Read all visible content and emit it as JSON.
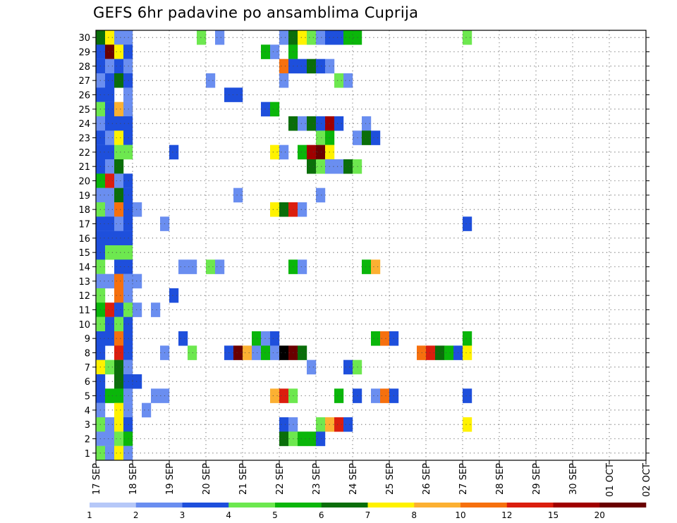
{
  "chart_data": {
    "type": "heatmap",
    "title": "GEFS 6hr padavine po ansamblima Cuprija",
    "x_step_hours": 6,
    "x_tick_labels": [
      "17 SEP",
      "18 SEP",
      "19 SEP",
      "20 SEP",
      "21 SEP",
      "22 SEP",
      "23 SEP",
      "24 SEP",
      "25 SEP",
      "26 SEP",
      "27 SEP",
      "28 SEP",
      "29 SEP",
      "30 SEP",
      "01 OCT",
      "02 OCT"
    ],
    "y_tick_labels": [
      "1",
      "2",
      "3",
      "4",
      "5",
      "6",
      "7",
      "8",
      "9",
      "10",
      "11",
      "12",
      "13",
      "14",
      "15",
      "16",
      "17",
      "18",
      "19",
      "20",
      "21",
      "22",
      "23",
      "24",
      "25",
      "26",
      "27",
      "28",
      "29",
      "30"
    ],
    "ylim": [
      1,
      30
    ],
    "grid": "dotted",
    "colorbar": {
      "position": "bottom",
      "labels": [
        "1",
        "2",
        "3",
        "4",
        "5",
        "6",
        "7",
        "8",
        "10",
        "12",
        "15",
        "20"
      ],
      "colors": [
        "#b6c8f8",
        "#6a8ef0",
        "#1e4fdc",
        "#6de84f",
        "#0ab60a",
        "#0a6e0a",
        "#fff200",
        "#fcb032",
        "#f6700e",
        "#db1e0e",
        "#a00000",
        "#6a0000"
      ]
    },
    "cells": [
      [
        0,
        30,
        5
      ],
      [
        1,
        30,
        6
      ],
      [
        2,
        30,
        1
      ],
      [
        3,
        30,
        1
      ],
      [
        11,
        30,
        3
      ],
      [
        13,
        30,
        1
      ],
      [
        20,
        30,
        1
      ],
      [
        21,
        30,
        5
      ],
      [
        22,
        30,
        6
      ],
      [
        23,
        30,
        3
      ],
      [
        24,
        30,
        1
      ],
      [
        25,
        30,
        2
      ],
      [
        26,
        30,
        2
      ],
      [
        27,
        30,
        4
      ],
      [
        28,
        30,
        4
      ],
      [
        40,
        30,
        3
      ],
      [
        0,
        29,
        2
      ],
      [
        1,
        29,
        11
      ],
      [
        2,
        29,
        6
      ],
      [
        3,
        29,
        2
      ],
      [
        18,
        29,
        4
      ],
      [
        19,
        29,
        1
      ],
      [
        21,
        29,
        4
      ],
      [
        0,
        28,
        2
      ],
      [
        1,
        28,
        1
      ],
      [
        2,
        28,
        2
      ],
      [
        3,
        28,
        1
      ],
      [
        20,
        28,
        8
      ],
      [
        21,
        28,
        2
      ],
      [
        22,
        28,
        2
      ],
      [
        23,
        28,
        5
      ],
      [
        24,
        28,
        2
      ],
      [
        25,
        28,
        1
      ],
      [
        0,
        27,
        1
      ],
      [
        1,
        27,
        2
      ],
      [
        2,
        27,
        5
      ],
      [
        3,
        27,
        2
      ],
      [
        12,
        27,
        1
      ],
      [
        20,
        27,
        1
      ],
      [
        26,
        27,
        3
      ],
      [
        27,
        27,
        1
      ],
      [
        0,
        26,
        2
      ],
      [
        1,
        26,
        2
      ],
      [
        3,
        26,
        1
      ],
      [
        14,
        26,
        2
      ],
      [
        15,
        26,
        2
      ],
      [
        0,
        25,
        3
      ],
      [
        1,
        25,
        2
      ],
      [
        2,
        25,
        7
      ],
      [
        3,
        25,
        1
      ],
      [
        18,
        25,
        2
      ],
      [
        19,
        25,
        4
      ],
      [
        0,
        24,
        1
      ],
      [
        1,
        24,
        2
      ],
      [
        2,
        24,
        2
      ],
      [
        3,
        24,
        2
      ],
      [
        21,
        24,
        5
      ],
      [
        22,
        24,
        1
      ],
      [
        23,
        24,
        5
      ],
      [
        24,
        24,
        2
      ],
      [
        25,
        24,
        10
      ],
      [
        26,
        24,
        2
      ],
      [
        29,
        24,
        1
      ],
      [
        0,
        23,
        2
      ],
      [
        1,
        23,
        1
      ],
      [
        2,
        23,
        6
      ],
      [
        3,
        23,
        2
      ],
      [
        24,
        23,
        3
      ],
      [
        25,
        23,
        4
      ],
      [
        28,
        23,
        1
      ],
      [
        29,
        23,
        5
      ],
      [
        30,
        23,
        2
      ],
      [
        0,
        22,
        2
      ],
      [
        1,
        22,
        2
      ],
      [
        2,
        22,
        3
      ],
      [
        3,
        22,
        3
      ],
      [
        8,
        22,
        2
      ],
      [
        19,
        22,
        6
      ],
      [
        20,
        22,
        1
      ],
      [
        22,
        22,
        4
      ],
      [
        23,
        22,
        10
      ],
      [
        24,
        22,
        11
      ],
      [
        25,
        22,
        6
      ],
      [
        0,
        21,
        2
      ],
      [
        1,
        21,
        1
      ],
      [
        2,
        21,
        5
      ],
      [
        23,
        21,
        5
      ],
      [
        24,
        21,
        3
      ],
      [
        25,
        21,
        1
      ],
      [
        26,
        21,
        1
      ],
      [
        27,
        21,
        5
      ],
      [
        28,
        21,
        3
      ],
      [
        0,
        20,
        4
      ],
      [
        1,
        20,
        9
      ],
      [
        2,
        20,
        1
      ],
      [
        3,
        20,
        2
      ],
      [
        0,
        19,
        1
      ],
      [
        1,
        19,
        1
      ],
      [
        2,
        19,
        5
      ],
      [
        3,
        19,
        2
      ],
      [
        15,
        19,
        1
      ],
      [
        24,
        19,
        1
      ],
      [
        0,
        18,
        3
      ],
      [
        1,
        18,
        1
      ],
      [
        2,
        18,
        8
      ],
      [
        3,
        18,
        2
      ],
      [
        4,
        18,
        1
      ],
      [
        19,
        18,
        6
      ],
      [
        20,
        18,
        5
      ],
      [
        21,
        18,
        9
      ],
      [
        22,
        18,
        1
      ],
      [
        0,
        17,
        2
      ],
      [
        1,
        17,
        2
      ],
      [
        2,
        17,
        1
      ],
      [
        3,
        17,
        2
      ],
      [
        7,
        17,
        1
      ],
      [
        40,
        17,
        2
      ],
      [
        0,
        16,
        2
      ],
      [
        1,
        16,
        2
      ],
      [
        2,
        16,
        2
      ],
      [
        3,
        16,
        2
      ],
      [
        0,
        15,
        2
      ],
      [
        1,
        15,
        3
      ],
      [
        2,
        15,
        3
      ],
      [
        3,
        15,
        3
      ],
      [
        0,
        14,
        3
      ],
      [
        2,
        14,
        2
      ],
      [
        3,
        14,
        2
      ],
      [
        9,
        14,
        1
      ],
      [
        10,
        14,
        1
      ],
      [
        12,
        14,
        3
      ],
      [
        13,
        14,
        1
      ],
      [
        21,
        14,
        4
      ],
      [
        22,
        14,
        1
      ],
      [
        29,
        14,
        4
      ],
      [
        30,
        14,
        7
      ],
      [
        0,
        13,
        1
      ],
      [
        1,
        13,
        1
      ],
      [
        2,
        13,
        8
      ],
      [
        3,
        13,
        1
      ],
      [
        4,
        13,
        1
      ],
      [
        0,
        12,
        3
      ],
      [
        2,
        12,
        8
      ],
      [
        3,
        12,
        1
      ],
      [
        8,
        12,
        2
      ],
      [
        0,
        11,
        4
      ],
      [
        1,
        11,
        9
      ],
      [
        2,
        11,
        2
      ],
      [
        3,
        11,
        3
      ],
      [
        4,
        11,
        1
      ],
      [
        6,
        11,
        1
      ],
      [
        0,
        10,
        3
      ],
      [
        1,
        10,
        2
      ],
      [
        2,
        10,
        3
      ],
      [
        3,
        10,
        2
      ],
      [
        0,
        9,
        2
      ],
      [
        1,
        9,
        2
      ],
      [
        2,
        9,
        8
      ],
      [
        3,
        9,
        2
      ],
      [
        9,
        9,
        2
      ],
      [
        17,
        9,
        4
      ],
      [
        18,
        9,
        1
      ],
      [
        19,
        9,
        2
      ],
      [
        30,
        9,
        4
      ],
      [
        31,
        9,
        8
      ],
      [
        32,
        9,
        2
      ],
      [
        40,
        9,
        4
      ],
      [
        0,
        8,
        2
      ],
      [
        2,
        8,
        9
      ],
      [
        3,
        8,
        2
      ],
      [
        7,
        8,
        1
      ],
      [
        10,
        8,
        3
      ],
      [
        14,
        8,
        2
      ],
      [
        15,
        8,
        11
      ],
      [
        16,
        8,
        7
      ],
      [
        17,
        8,
        1
      ],
      [
        18,
        8,
        4
      ],
      [
        19,
        8,
        1
      ],
      [
        20,
        8,
        12
      ],
      [
        21,
        8,
        11
      ],
      [
        22,
        8,
        5
      ],
      [
        35,
        8,
        8
      ],
      [
        36,
        8,
        9
      ],
      [
        37,
        8,
        5
      ],
      [
        38,
        8,
        4
      ],
      [
        39,
        8,
        2
      ],
      [
        40,
        8,
        6
      ],
      [
        0,
        7,
        6
      ],
      [
        1,
        7,
        3
      ],
      [
        2,
        7,
        5
      ],
      [
        3,
        7,
        1
      ],
      [
        23,
        7,
        1
      ],
      [
        27,
        7,
        2
      ],
      [
        28,
        7,
        3
      ],
      [
        0,
        6,
        2
      ],
      [
        2,
        6,
        5
      ],
      [
        3,
        6,
        2
      ],
      [
        4,
        6,
        2
      ],
      [
        0,
        5,
        2
      ],
      [
        1,
        5,
        4
      ],
      [
        2,
        5,
        4
      ],
      [
        3,
        5,
        1
      ],
      [
        6,
        5,
        1
      ],
      [
        7,
        5,
        1
      ],
      [
        19,
        5,
        7
      ],
      [
        20,
        5,
        9
      ],
      [
        21,
        5,
        3
      ],
      [
        26,
        5,
        4
      ],
      [
        28,
        5,
        2
      ],
      [
        30,
        5,
        1
      ],
      [
        31,
        5,
        8
      ],
      [
        32,
        5,
        2
      ],
      [
        40,
        5,
        2
      ],
      [
        0,
        4,
        1
      ],
      [
        2,
        4,
        6
      ],
      [
        3,
        4,
        1
      ],
      [
        5,
        4,
        1
      ],
      [
        0,
        3,
        3
      ],
      [
        1,
        3,
        1
      ],
      [
        2,
        3,
        6
      ],
      [
        3,
        3,
        2
      ],
      [
        20,
        3,
        2
      ],
      [
        21,
        3,
        1
      ],
      [
        24,
        3,
        3
      ],
      [
        25,
        3,
        7
      ],
      [
        26,
        3,
        9
      ],
      [
        27,
        3,
        2
      ],
      [
        40,
        3,
        6
      ],
      [
        0,
        2,
        1
      ],
      [
        1,
        2,
        1
      ],
      [
        2,
        2,
        3
      ],
      [
        3,
        2,
        4
      ],
      [
        20,
        2,
        5
      ],
      [
        21,
        2,
        3
      ],
      [
        22,
        2,
        4
      ],
      [
        23,
        2,
        4
      ],
      [
        24,
        2,
        2
      ],
      [
        0,
        1,
        3
      ],
      [
        1,
        1,
        1
      ],
      [
        2,
        1,
        6
      ],
      [
        3,
        1,
        1
      ]
    ]
  }
}
